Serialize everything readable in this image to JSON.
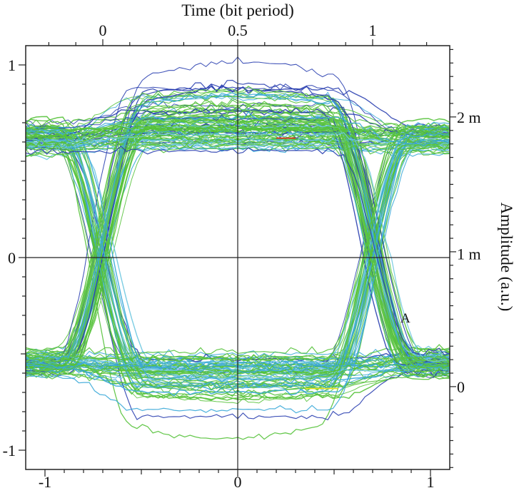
{
  "chart_data": {
    "type": "line",
    "title": "",
    "top_axis": {
      "label": "Time (bit period)",
      "ticks": [
        "0",
        "0.5",
        "1"
      ],
      "tick_values": [
        0,
        0.5,
        1
      ]
    },
    "bottom_axis": {
      "ticks": [
        "-1",
        "0",
        "1"
      ],
      "tick_values": [
        -1,
        0,
        1
      ],
      "range": [
        -1.1,
        1.1
      ]
    },
    "left_axis": {
      "ticks": [
        "1",
        "0",
        "-1"
      ],
      "tick_values": [
        1,
        0,
        -1
      ],
      "range": [
        -1.1,
        1.1
      ]
    },
    "right_axis": {
      "label": "Amplitude (a.u.)",
      "ticks": [
        "2 m",
        "1 m",
        "0"
      ],
      "left_equivalent": [
        0.73,
        0.02,
        -0.67
      ]
    },
    "annotation": "A",
    "eye_diagram": {
      "crossing_points_bottom": [
        -0.7,
        0.7
      ],
      "upper_level": 0.62,
      "lower_level": -0.55,
      "peak": 0.95,
      "trough": -1.0
    },
    "grid": "crosshair at 0,0",
    "colors": {
      "dominant": "#55c23a",
      "secondary": "#3aa8d8",
      "dark": "#2a3fb0",
      "highlight": "#e03020"
    }
  }
}
